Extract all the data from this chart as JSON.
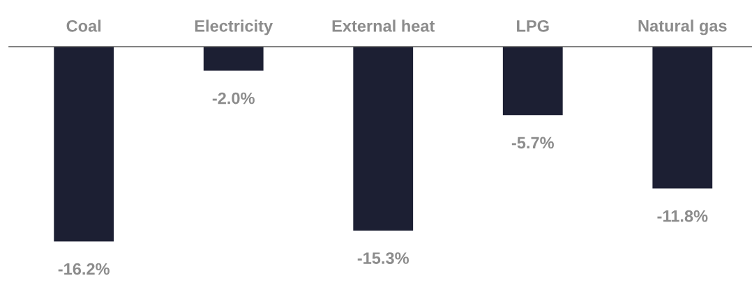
{
  "chart_data": {
    "type": "bar",
    "categories": [
      "Coal",
      "Electricity",
      "External heat",
      "LPG",
      "Natural gas"
    ],
    "values": [
      -16.2,
      -2.0,
      -15.3,
      -5.7,
      -11.8
    ],
    "value_labels": [
      "-16.2%",
      "-2.0%",
      "-15.3%",
      "-5.7%",
      "-11.8%"
    ],
    "color": "#1c1f33",
    "grid": false,
    "legend": false
  }
}
